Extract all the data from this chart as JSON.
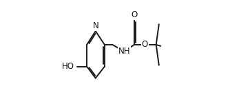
{
  "background_color": "#ffffff",
  "line_color": "#1a1a1a",
  "line_width": 1.4,
  "font_size": 8.5,
  "xlim": [
    -0.05,
    1.08
  ],
  "ylim": [
    0.05,
    1.05
  ]
}
